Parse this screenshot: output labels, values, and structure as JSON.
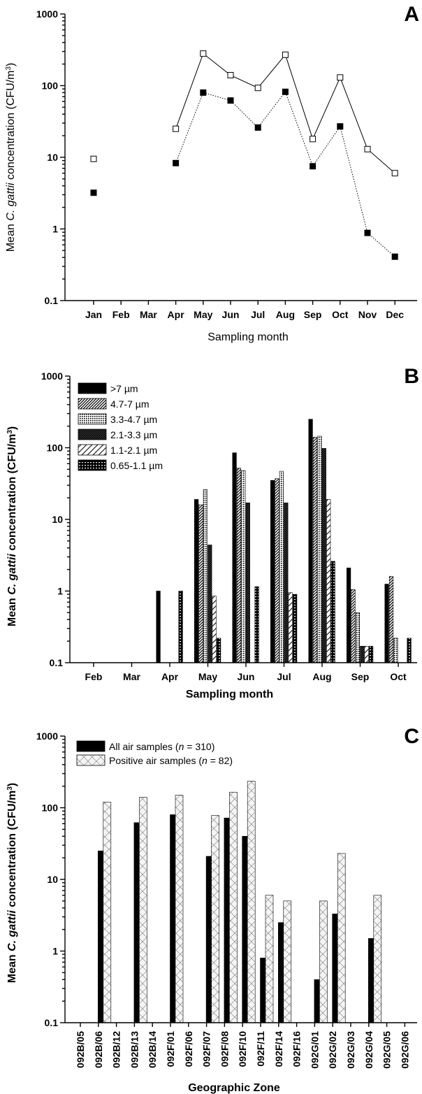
{
  "chart_data": [
    {
      "panel": "A",
      "type": "line",
      "xlabel": "Sampling month",
      "ylabel_parts": [
        "Mean ",
        "C. gattii",
        " concentration (CFU/m",
        "3",
        ")"
      ],
      "yscale": "log",
      "ylim": [
        0.1,
        1000
      ],
      "yticks": [
        "0.1",
        "1",
        "10",
        "100",
        "1000"
      ],
      "categories": [
        "Jan",
        "Feb",
        "Mar",
        "Apr",
        "May",
        "Jun",
        "Jul",
        "Aug",
        "Sep",
        "Oct",
        "Nov",
        "Dec"
      ],
      "series": [
        {
          "marker": "open-square",
          "line": "solid",
          "values": [
            9.5,
            null,
            null,
            25,
            280,
            140,
            93,
            270,
            18,
            130,
            13,
            6
          ]
        },
        {
          "marker": "filled-square",
          "line": "dotted",
          "values": [
            3.2,
            null,
            null,
            8.3,
            80,
            62,
            26,
            82,
            7.5,
            27,
            0.88,
            0.41
          ]
        }
      ]
    },
    {
      "panel": "B",
      "type": "bar",
      "xlabel": "Sampling month",
      "ylabel_parts": [
        "Mean ",
        "C. gattii",
        " concentration (CFU/m",
        "3",
        ")"
      ],
      "yscale": "log",
      "ylim": [
        0.1,
        1000
      ],
      "yticks": [
        "0.1",
        "1",
        "10",
        "100",
        "1000"
      ],
      "legend_position": "top-left",
      "categories": [
        "Feb",
        "Mar",
        "Apr",
        "May",
        "Jun",
        "Jul",
        "Aug",
        "Sep",
        "Oct"
      ],
      "series": [
        {
          "name": ">7 µm",
          "pattern": "solid",
          "values": [
            null,
            null,
            1.0,
            19,
            85,
            35,
            250,
            2.1,
            1.25
          ]
        },
        {
          "name": "4.7-7 µm",
          "pattern": "diag-fine",
          "values": [
            null,
            null,
            null,
            16,
            52,
            37,
            140,
            1.05,
            1.6
          ]
        },
        {
          "name": "3.3-4.7 µm",
          "pattern": "dots",
          "values": [
            null,
            null,
            null,
            26,
            48,
            47,
            145,
            0.5,
            0.22
          ]
        },
        {
          "name": "2.1-3.3 µm",
          "pattern": "diag-dense",
          "values": [
            null,
            null,
            null,
            4.4,
            17,
            17,
            98,
            0.17,
            null
          ]
        },
        {
          "name": "1.1-2.1 µm",
          "pattern": "diag-wide",
          "values": [
            null,
            null,
            null,
            0.85,
            null,
            0.95,
            19,
            0.17,
            null
          ]
        },
        {
          "name": "0.65-1.1 µm",
          "pattern": "hbars",
          "values": [
            null,
            null,
            1.0,
            0.22,
            1.15,
            0.9,
            2.6,
            0.17,
            0.22
          ]
        }
      ]
    },
    {
      "panel": "C",
      "type": "bar",
      "xlabel": "Geographic Zone",
      "ylabel_parts": [
        "Mean ",
        "C. gattii",
        " concentration (CFU/m",
        "3",
        ")"
      ],
      "yscale": "log",
      "ylim": [
        0.1,
        1000
      ],
      "yticks": [
        "0.1",
        "1",
        "10",
        "100",
        "1000"
      ],
      "legend_position": "top-left",
      "categories": [
        "092B/05",
        "092B/06",
        "092B/12",
        "092B/13",
        "092B/14",
        "092F/01",
        "092F/06",
        "092F/07",
        "092F/08",
        "092F/10",
        "092F/11",
        "092F/14",
        "092F/16",
        "092G/01",
        "092G/02",
        "092G/03",
        "092G/04",
        "092G/05",
        "092G/06"
      ],
      "series": [
        {
          "name_parts": [
            "All air samples (",
            "n",
            " = 310)"
          ],
          "pattern": "solid",
          "values": [
            null,
            25,
            null,
            62,
            null,
            80,
            null,
            21,
            72,
            40,
            0.8,
            2.5,
            null,
            0.4,
            3.3,
            null,
            1.5,
            null,
            null
          ]
        },
        {
          "name_parts": [
            "Positive air samples (",
            "n",
            " = 82)"
          ],
          "pattern": "crosshatch",
          "values": [
            null,
            120,
            null,
            140,
            null,
            150,
            null,
            78,
            165,
            235,
            6,
            5,
            null,
            5,
            23,
            null,
            6,
            null,
            null
          ]
        }
      ]
    }
  ]
}
